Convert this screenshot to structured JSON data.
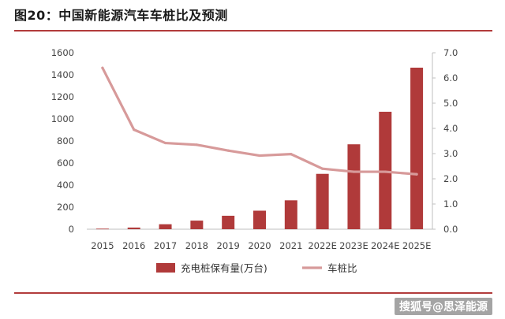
{
  "header": {
    "title": "图20：中国新能源汽车车桩比及预测"
  },
  "watermark": "搜狐号@思泽能源",
  "colors": {
    "bar": "#b03a3a",
    "line": "#d79a9a",
    "rule": "#b23b3b",
    "axis": "#bfbfbf"
  },
  "chart_data": {
    "type": "bar",
    "categories": [
      "2015",
      "2016",
      "2017",
      "2018",
      "2019",
      "2020",
      "2021",
      "2022E",
      "2023E",
      "2024E",
      "2025E"
    ],
    "left_axis": {
      "ticks": [
        "0",
        "200",
        "400",
        "600",
        "800",
        "1000",
        "1200",
        "1400",
        "1600"
      ],
      "ylim": [
        0,
        1600
      ]
    },
    "right_axis": {
      "ticks": [
        "0.0",
        "1.0",
        "2.0",
        "3.0",
        "4.0",
        "5.0",
        "6.0",
        "7.0"
      ],
      "ylim": [
        0,
        7
      ]
    },
    "series": [
      {
        "name": "充电桩保有量(万台)",
        "type": "bar",
        "axis": "left",
        "values": [
          5,
          15,
          45,
          78,
          122,
          168,
          262,
          502,
          770,
          1065,
          1465
        ]
      },
      {
        "name": "车桩比",
        "type": "line",
        "axis": "right",
        "values": [
          6.4,
          3.95,
          3.42,
          3.35,
          3.12,
          2.92,
          2.98,
          2.4,
          2.28,
          2.28,
          2.18
        ]
      }
    ],
    "legend_position": "bottom"
  }
}
